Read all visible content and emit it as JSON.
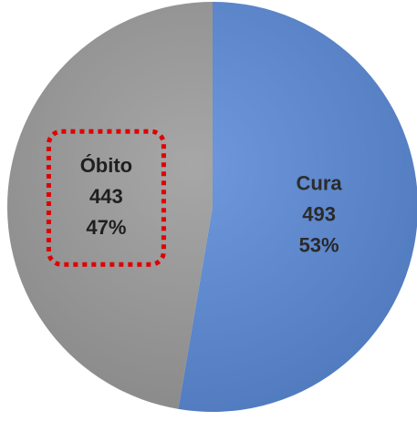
{
  "chart_data": {
    "type": "pie",
    "categories": [
      "Cura",
      "Óbito"
    ],
    "values": [
      493,
      443
    ],
    "percentages": [
      53,
      47
    ],
    "percentage_labels": [
      "53%",
      "47%"
    ],
    "colors": [
      "#5b8ad8",
      "#9b9b9b"
    ],
    "highlight": "Óbito",
    "highlight_color": "#e00000"
  }
}
